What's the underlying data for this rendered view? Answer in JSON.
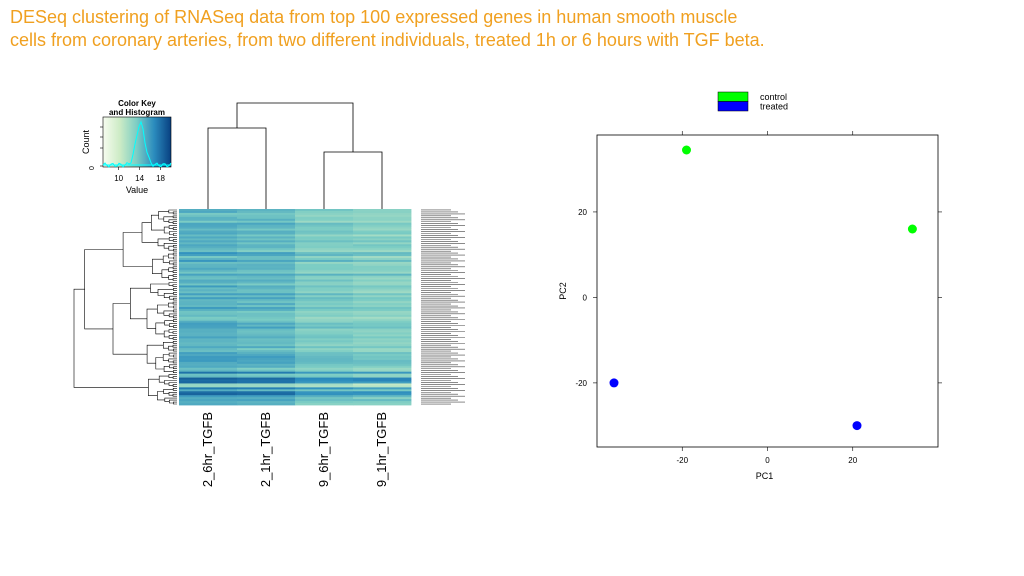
{
  "slide": {
    "title": "DESeq clustering of RNASeq data from top 100 expressed genes in human smooth muscle cells from coronary arteries, from two different individuals, treated 1h or 6 hours with TGF beta."
  },
  "chart_data": [
    {
      "type": "heatmap",
      "title": "",
      "color_key": {
        "title": "Color Key\nand Histogram",
        "xlabel": "Value",
        "ylabel": "Count",
        "x_ticks": [
          10,
          14,
          18
        ],
        "y_ticks": [
          0
        ],
        "x_range": [
          7,
          20
        ],
        "palette": [
          "#f7fcf0",
          "#ccebc5",
          "#7bccc4",
          "#2b8cbe",
          "#084081"
        ]
      },
      "columns": [
        "2_6hr_TGFB",
        "2_1hr_TGFB",
        "9_6hr_TGFB",
        "9_1hr_TGFB"
      ],
      "row_count": 100,
      "column_dendrogram": [
        [
          [
            "2_6hr_TGFB",
            "2_1hr_TGFB"
          ],
          [
            "9_6hr_TGFB",
            "9_1hr_TGFB"
          ]
        ]
      ]
    },
    {
      "type": "scatter",
      "title": "",
      "xlabel": "PC1",
      "ylabel": "PC2",
      "xlim": [
        -40,
        40
      ],
      "ylim": [
        -35,
        38
      ],
      "x_ticks": [
        -20,
        0,
        20
      ],
      "y_ticks": [
        -20,
        0,
        20
      ],
      "legend": {
        "placement": "top",
        "entries": [
          {
            "label": "control",
            "color": "#00ff00"
          },
          {
            "label": "treated",
            "color": "#0000ff"
          }
        ]
      },
      "series": [
        {
          "name": "control",
          "color": "#00ff00",
          "points": [
            [
              -19,
              34.5
            ],
            [
              34,
              16
            ]
          ]
        },
        {
          "name": "treated",
          "color": "#0000ff",
          "points": [
            [
              -36,
              -20
            ],
            [
              21,
              -30
            ]
          ]
        }
      ]
    }
  ]
}
